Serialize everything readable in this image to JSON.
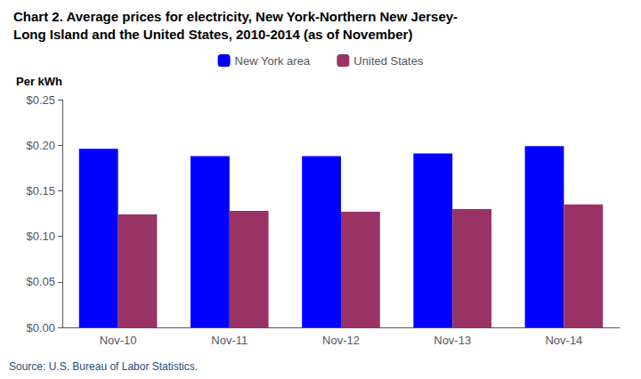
{
  "chart_data": {
    "type": "bar",
    "title": "Chart 2. Average prices for electricity, New York-Northern New Jersey-",
    "subtitle": "Long Island and the United States, 2010-2014 (as of November)",
    "y_label": "Per kWh",
    "annotations": [
      "Source: U.S. Bureau of Labor Statistics."
    ],
    "categories": [
      "Nov-10",
      "Nov-11",
      "Nov-12",
      "Nov-13",
      "Nov-14"
    ],
    "series": [
      {
        "name": "New York area",
        "color": "#0000FF",
        "values": [
          0.196,
          0.188,
          0.188,
          0.191,
          0.199
        ]
      },
      {
        "name": "United States",
        "color": "#993366",
        "values": [
          0.124,
          0.128,
          0.127,
          0.13,
          0.135
        ]
      }
    ],
    "ylim": [
      0,
      0.25
    ],
    "yticks": [
      {
        "value": 0.0,
        "label": "$0.00"
      },
      {
        "value": 0.05,
        "label": "$0.05"
      },
      {
        "value": 0.1,
        "label": "$0.10"
      },
      {
        "value": 0.15,
        "label": "$0.15"
      },
      {
        "value": 0.2,
        "label": "$0.20"
      },
      {
        "value": 0.25,
        "label": "$0.25"
      }
    ],
    "legend": "top",
    "grid": false
  }
}
